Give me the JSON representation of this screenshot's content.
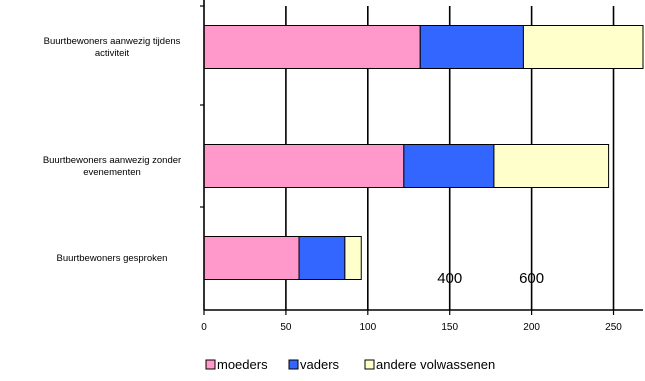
{
  "chart_data": {
    "type": "bar",
    "orientation": "horizontal",
    "stacked": true,
    "categories": [
      [
        "Buurtbewoners aanwezig tijdens",
        "activiteit"
      ],
      [
        "Buurtbewoners aanwezig zonder",
        "evenementen"
      ],
      [
        "Buurtbewoners gesproken"
      ]
    ],
    "series": [
      {
        "name": "moeders",
        "color": "#ff99cc",
        "values": [
          132,
          122,
          58
        ]
      },
      {
        "name": "vaders",
        "color": "#3366ff",
        "values": [
          63,
          55,
          28
        ]
      },
      {
        "name": "andere volwassenen",
        "color": "#ffffcc",
        "values": [
          73,
          70,
          10
        ]
      }
    ],
    "xlim": [
      0,
      268
    ],
    "xticks": [
      0,
      50,
      100,
      150,
      200,
      250
    ],
    "grid": true,
    "legend_position": "bottom",
    "annotations": [
      {
        "text": "400",
        "x": 150,
        "category_index": 2
      },
      {
        "text": "600",
        "x": 200,
        "category_index": 2
      }
    ]
  }
}
